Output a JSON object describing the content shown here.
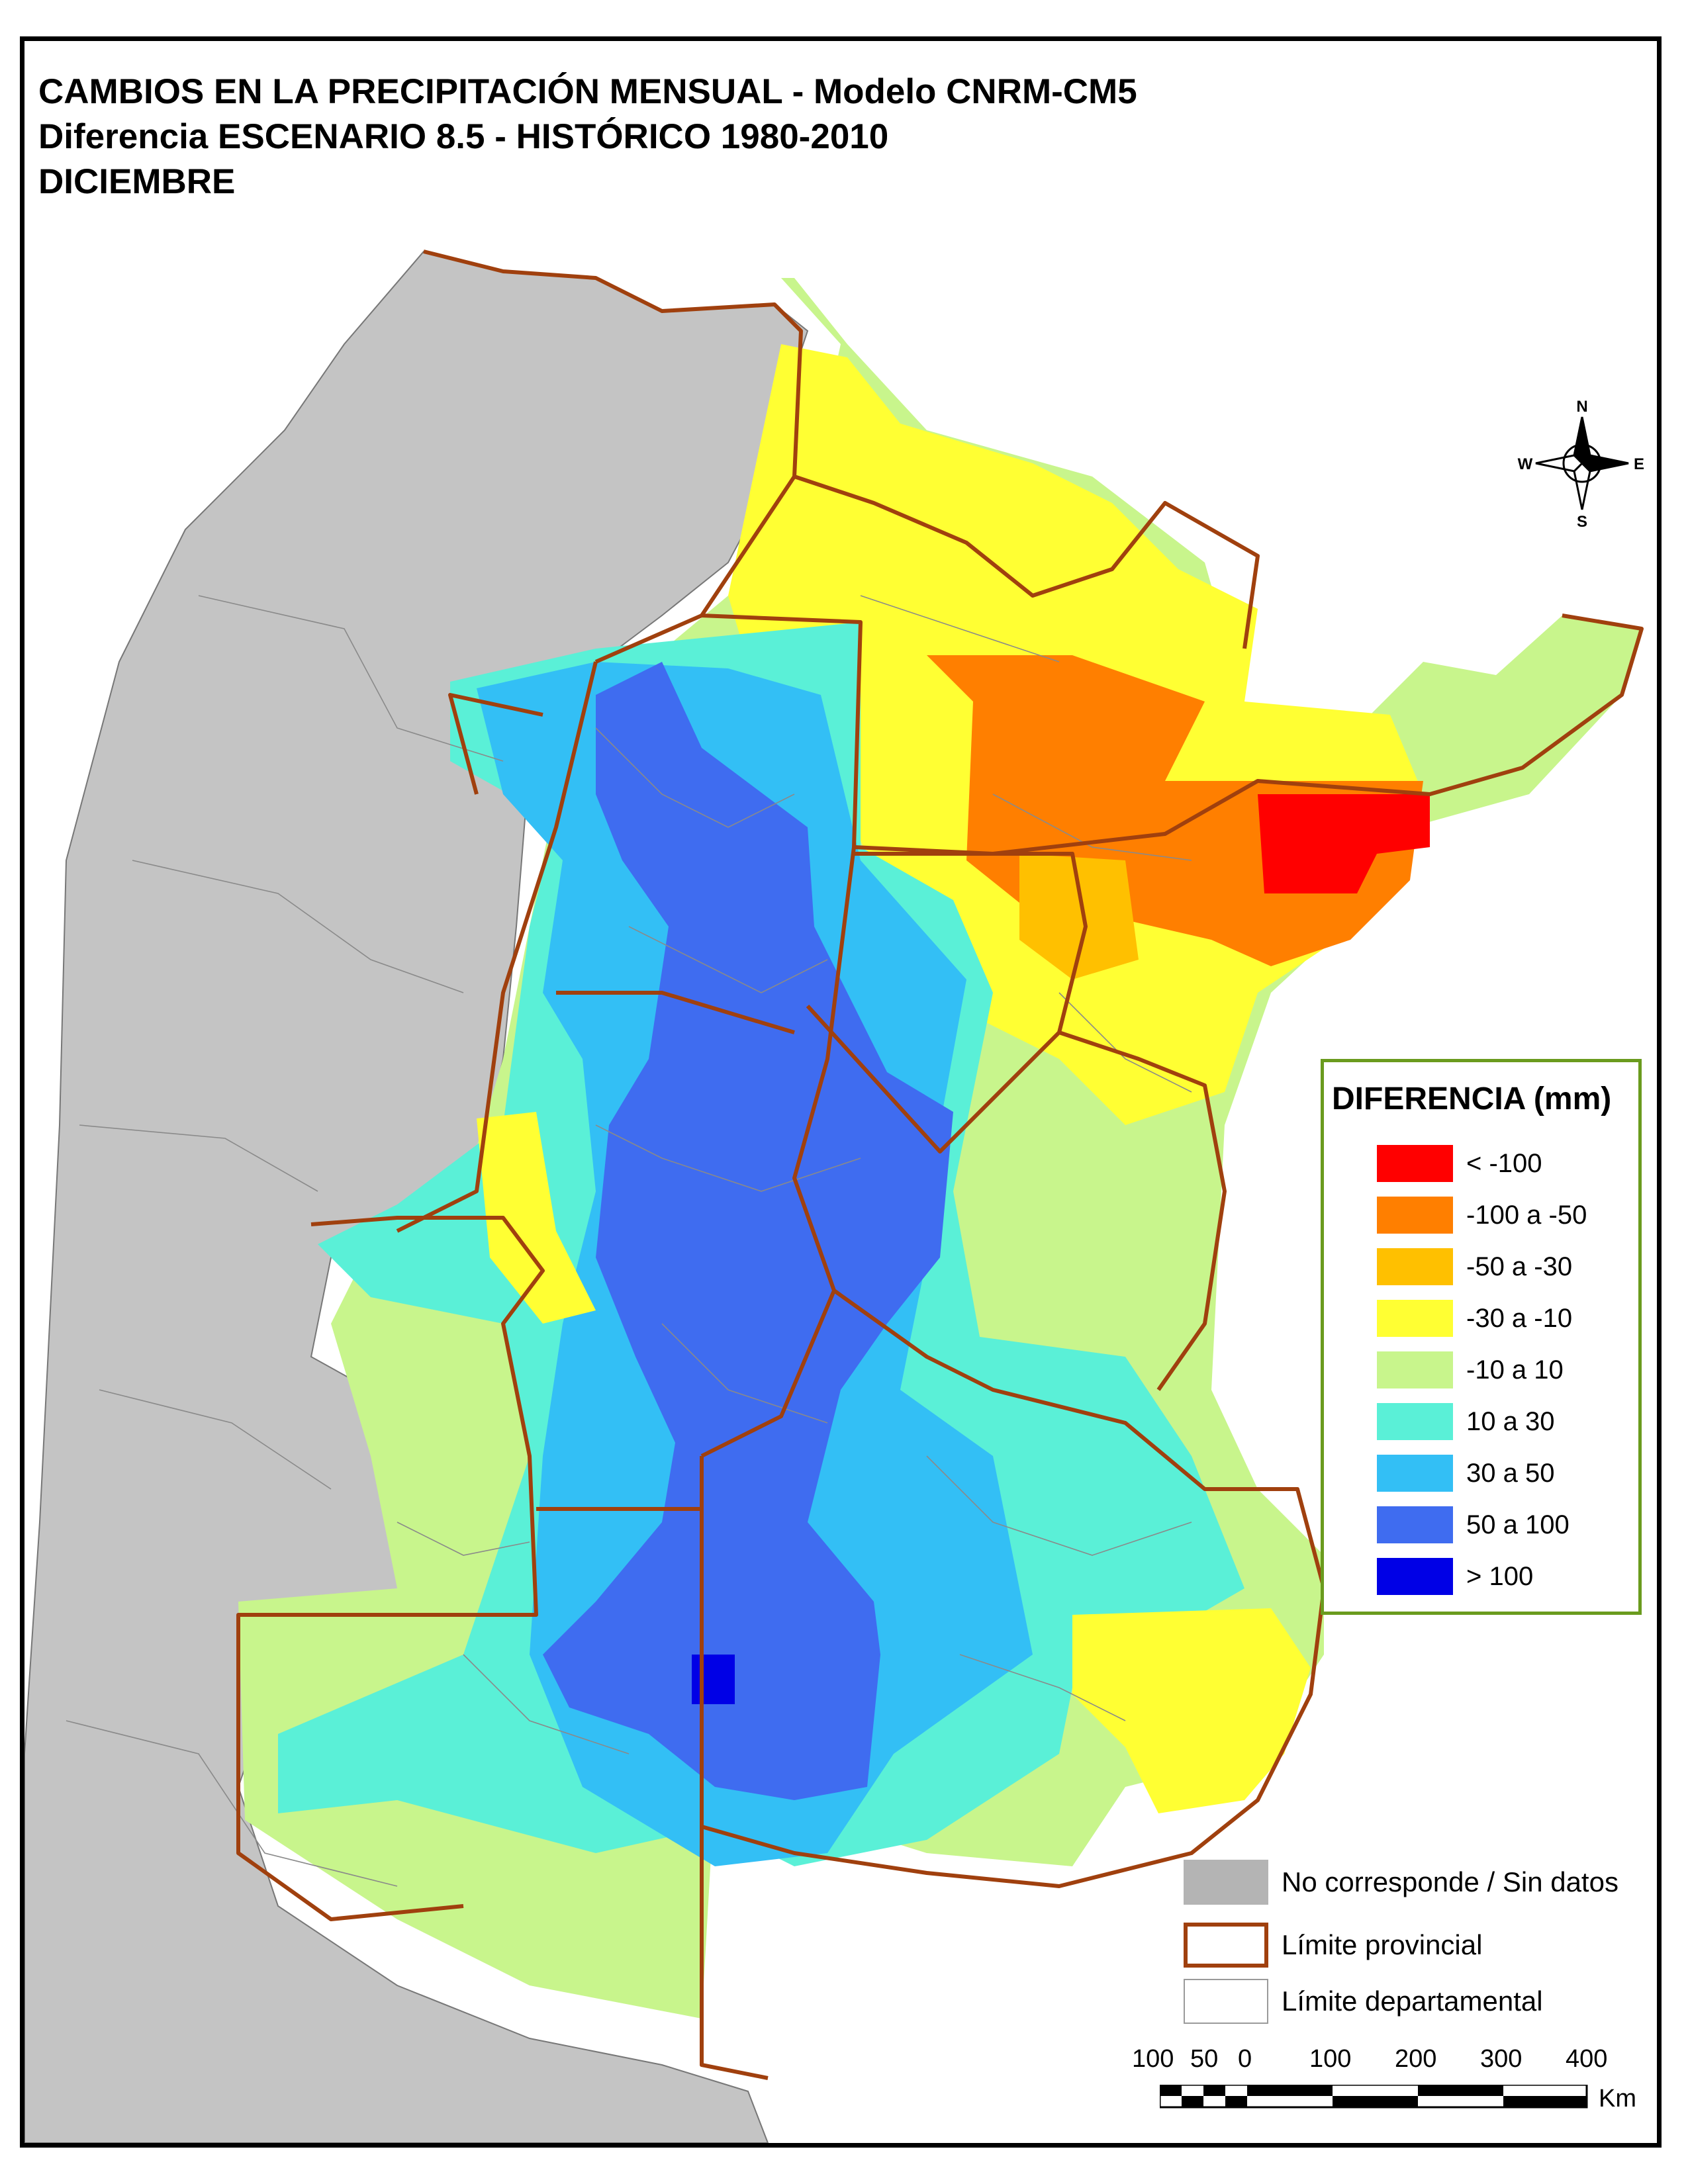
{
  "title": {
    "line1": "CAMBIOS EN LA PRECIPITACIÓN MENSUAL - Modelo CNRM-CM5",
    "line2": "Diferencia ESCENARIO 8.5 - HISTÓRICO 1980-2010",
    "line3": "DICIEMBRE"
  },
  "legend": {
    "title": "DIFERENCIA (mm)",
    "classes": [
      {
        "label": "< -100",
        "color": "#ff0000"
      },
      {
        "label": "-100 a -50",
        "color": "#ff7f00"
      },
      {
        "label": "-50 a -30",
        "color": "#ffc000"
      },
      {
        "label": "-30 a -10",
        "color": "#ffff33"
      },
      {
        "label": "-10 a 10",
        "color": "#c8f58c"
      },
      {
        "label": "10 a 30",
        "color": "#5af0d7"
      },
      {
        "label": "30 a 50",
        "color": "#33bff5"
      },
      {
        "label": "50 a 100",
        "color": "#3f6cf0"
      },
      {
        "label": "> 100",
        "color": "#0000e6"
      }
    ]
  },
  "reference": {
    "no_data": {
      "label": "No corresponde / Sin datos",
      "color": "#b4b4b4"
    },
    "provincial": {
      "label": "Límite provincial",
      "color": "#a0400e"
    },
    "departmental": {
      "label": "Límite departamental",
      "color": "#9a9a9a"
    }
  },
  "compass": {
    "n": "N",
    "s": "S",
    "e": "E",
    "w": "W"
  },
  "scale": {
    "ticks": [
      "100",
      "50",
      "0",
      "100",
      "200",
      "300",
      "400"
    ],
    "unit": "Km"
  }
}
